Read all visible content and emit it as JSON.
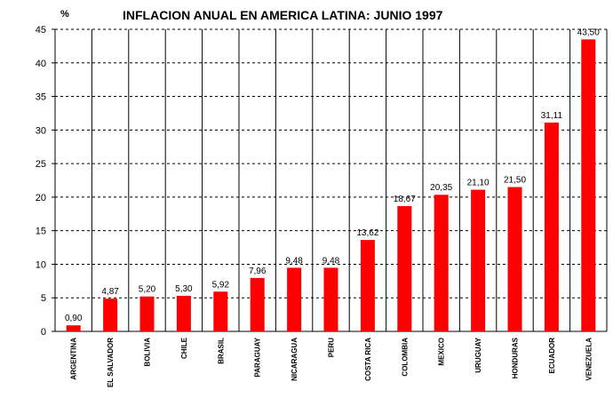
{
  "chart_data": {
    "type": "bar",
    "title": "INFLACION ANUAL EN AMERICA LATINA: JUNIO 1997",
    "ylabel": "%",
    "xlabel": "",
    "ylim": [
      0,
      45
    ],
    "yticks": [
      0,
      5,
      10,
      15,
      20,
      25,
      30,
      35,
      40,
      45
    ],
    "grid": "horizontal-dashed",
    "bar_color": "#ff0000",
    "categories": [
      "ARGENTINA",
      "EL SALVADOR",
      "BOLIVIA",
      "CHILE",
      "BRASIL",
      "PARAGUAY",
      "NICARAGUA",
      "PERU",
      "COSTA RICA",
      "COLOMBIA",
      "MEXICO",
      "URUGUAY",
      "HONDURAS",
      "ECUADOR",
      "VENEZUELA"
    ],
    "values": [
      0.9,
      4.87,
      5.2,
      5.3,
      5.92,
      7.96,
      9.48,
      9.48,
      13.62,
      18.67,
      20.35,
      21.1,
      21.5,
      31.11,
      43.5
    ],
    "value_labels": [
      "0,90",
      "4,87",
      "5,20",
      "5,30",
      "5,92",
      "7,96",
      "9,48",
      "9,48",
      "13,62",
      "18,67",
      "20,35",
      "21,10",
      "21,50",
      "31,11",
      "43,50"
    ]
  }
}
